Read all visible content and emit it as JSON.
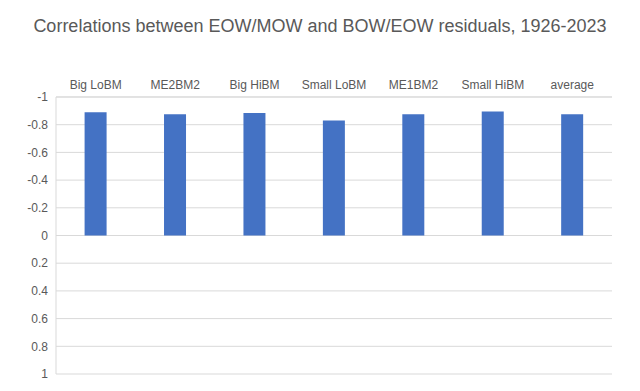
{
  "chart_data": {
    "type": "bar",
    "title": "Correlations between EOW/MOW and BOW/EOW residuals, 1926-2023",
    "categories": [
      "Big LoBM",
      "ME2BM2",
      "Big HiBM",
      "Small LoBM",
      "ME1BM2",
      "Small HiBM",
      "average"
    ],
    "values": [
      -0.89,
      -0.875,
      -0.885,
      -0.83,
      -0.875,
      -0.895,
      -0.875
    ],
    "color": "#4472c4",
    "ylim": [
      -1,
      1
    ],
    "yticks": [
      -1,
      -0.8,
      -0.6,
      -0.4,
      -0.2,
      0,
      0.2,
      0.4,
      0.6,
      0.8,
      1
    ],
    "grid": true
  }
}
